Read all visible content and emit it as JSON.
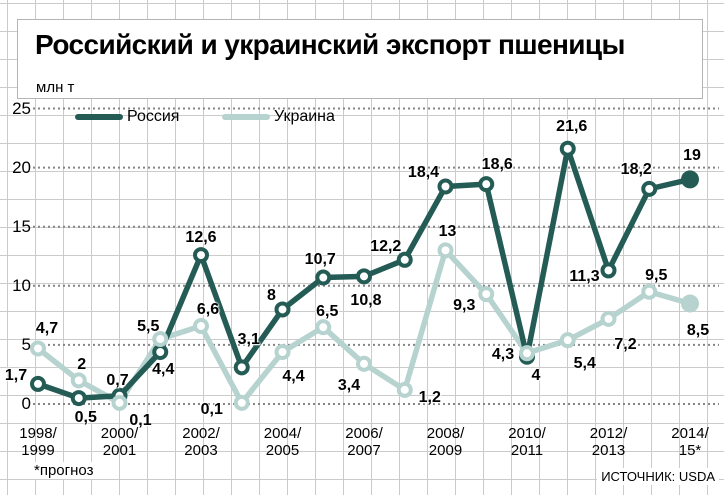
{
  "header": {
    "title": "Российский и украинский экспорт пшеницы",
    "unit": "млн т"
  },
  "legend": [
    {
      "label": "Россия",
      "color": "#245c55"
    },
    {
      "label": "Украина",
      "color": "#b7d3d0"
    }
  ],
  "footnote": "*прогноз",
  "source": "ИСТОЧНИК: USDA",
  "colors": {
    "russia": "#245c55",
    "ukraine": "#b7d3d0",
    "dotted_gridline": "#848484",
    "background_grid": "#cbcbcb",
    "card_border": "#b4b4b4"
  },
  "chart_data": {
    "type": "line",
    "title": "Российский и украинский экспорт пшеницы",
    "ylabel": "млн т",
    "ylim": [
      0,
      25
    ],
    "yticks": [
      0,
      5,
      10,
      15,
      20,
      25
    ],
    "grid": "dotted horizontal lines at each ytick over graph-paper background",
    "legend_position": "top-left",
    "n_points": 17,
    "x_tick_labels": [
      {
        "index": 0,
        "line1": "1998/",
        "line2": "1999"
      },
      {
        "index": 2,
        "line1": "2000/",
        "line2": "2001"
      },
      {
        "index": 4,
        "line1": "2002/",
        "line2": "2003"
      },
      {
        "index": 6,
        "line1": "2004/",
        "line2": "2005"
      },
      {
        "index": 8,
        "line1": "2006/",
        "line2": "2007"
      },
      {
        "index": 10,
        "line1": "2008/",
        "line2": "2009"
      },
      {
        "index": 12,
        "line1": "2010/",
        "line2": "2011"
      },
      {
        "index": 14,
        "line1": "2012/",
        "line2": "2013"
      },
      {
        "index": 16,
        "line1": "2014/",
        "line2": "15*"
      }
    ],
    "series": [
      {
        "name": "Россия",
        "color": "#245c55",
        "last_point_filled": true,
        "values": [
          1.7,
          0.5,
          0.7,
          4.4,
          12.6,
          3.1,
          8,
          10.7,
          10.8,
          12.2,
          18.4,
          18.6,
          4,
          21.6,
          11.3,
          18.2,
          19
        ],
        "labels": [
          "1,7",
          "0,5",
          "0,7",
          "4,4",
          "12,6",
          "3,1",
          "8",
          "10,7",
          "10,8",
          "12,2",
          "18,4",
          "18,6",
          "4",
          "21,6",
          "11,3",
          "18,2",
          "19"
        ],
        "label_offsets": [
          [
            -22,
            -8
          ],
          [
            7,
            20
          ],
          [
            -2,
            -15
          ],
          [
            3,
            18
          ],
          [
            0,
            -17
          ],
          [
            7,
            -27
          ],
          [
            -11,
            -13
          ],
          [
            -3,
            -18
          ],
          [
            2,
            25
          ],
          [
            -19,
            -13
          ],
          [
            -22,
            -14
          ],
          [
            11,
            -19
          ],
          [
            9,
            19
          ],
          [
            4,
            -22
          ],
          [
            -24,
            7
          ],
          [
            -13,
            -19
          ],
          [
            2,
            -23
          ]
        ]
      },
      {
        "name": "Украина",
        "color": "#b7d3d0",
        "last_point_filled": true,
        "values": [
          4.7,
          2,
          0.1,
          5.5,
          6.6,
          0.1,
          4.4,
          6.5,
          3.4,
          1.2,
          13,
          9.3,
          4.3,
          5.4,
          7.2,
          9.5,
          8.5
        ],
        "labels": [
          "4,7",
          "2",
          "0,1",
          "5,5",
          "6,6",
          "0,1",
          "4,4",
          "6,5",
          "3,4",
          "1,2",
          "13",
          "9,3",
          "4,3",
          "5,4",
          "7,2",
          "9,5",
          "8,5"
        ],
        "label_offsets": [
          [
            9,
            -19
          ],
          [
            3,
            -15
          ],
          [
            21,
            18
          ],
          [
            -12,
            -12
          ],
          [
            7,
            -16
          ],
          [
            -30,
            7
          ],
          [
            11,
            25
          ],
          [
            4,
            -15
          ],
          [
            -15,
            22
          ],
          [
            25,
            8
          ],
          [
            2,
            -18
          ],
          [
            -22,
            12
          ],
          [
            -24,
            2
          ],
          [
            17,
            24
          ],
          [
            17,
            26
          ],
          [
            7,
            -16
          ],
          [
            8,
            27
          ]
        ]
      }
    ]
  }
}
